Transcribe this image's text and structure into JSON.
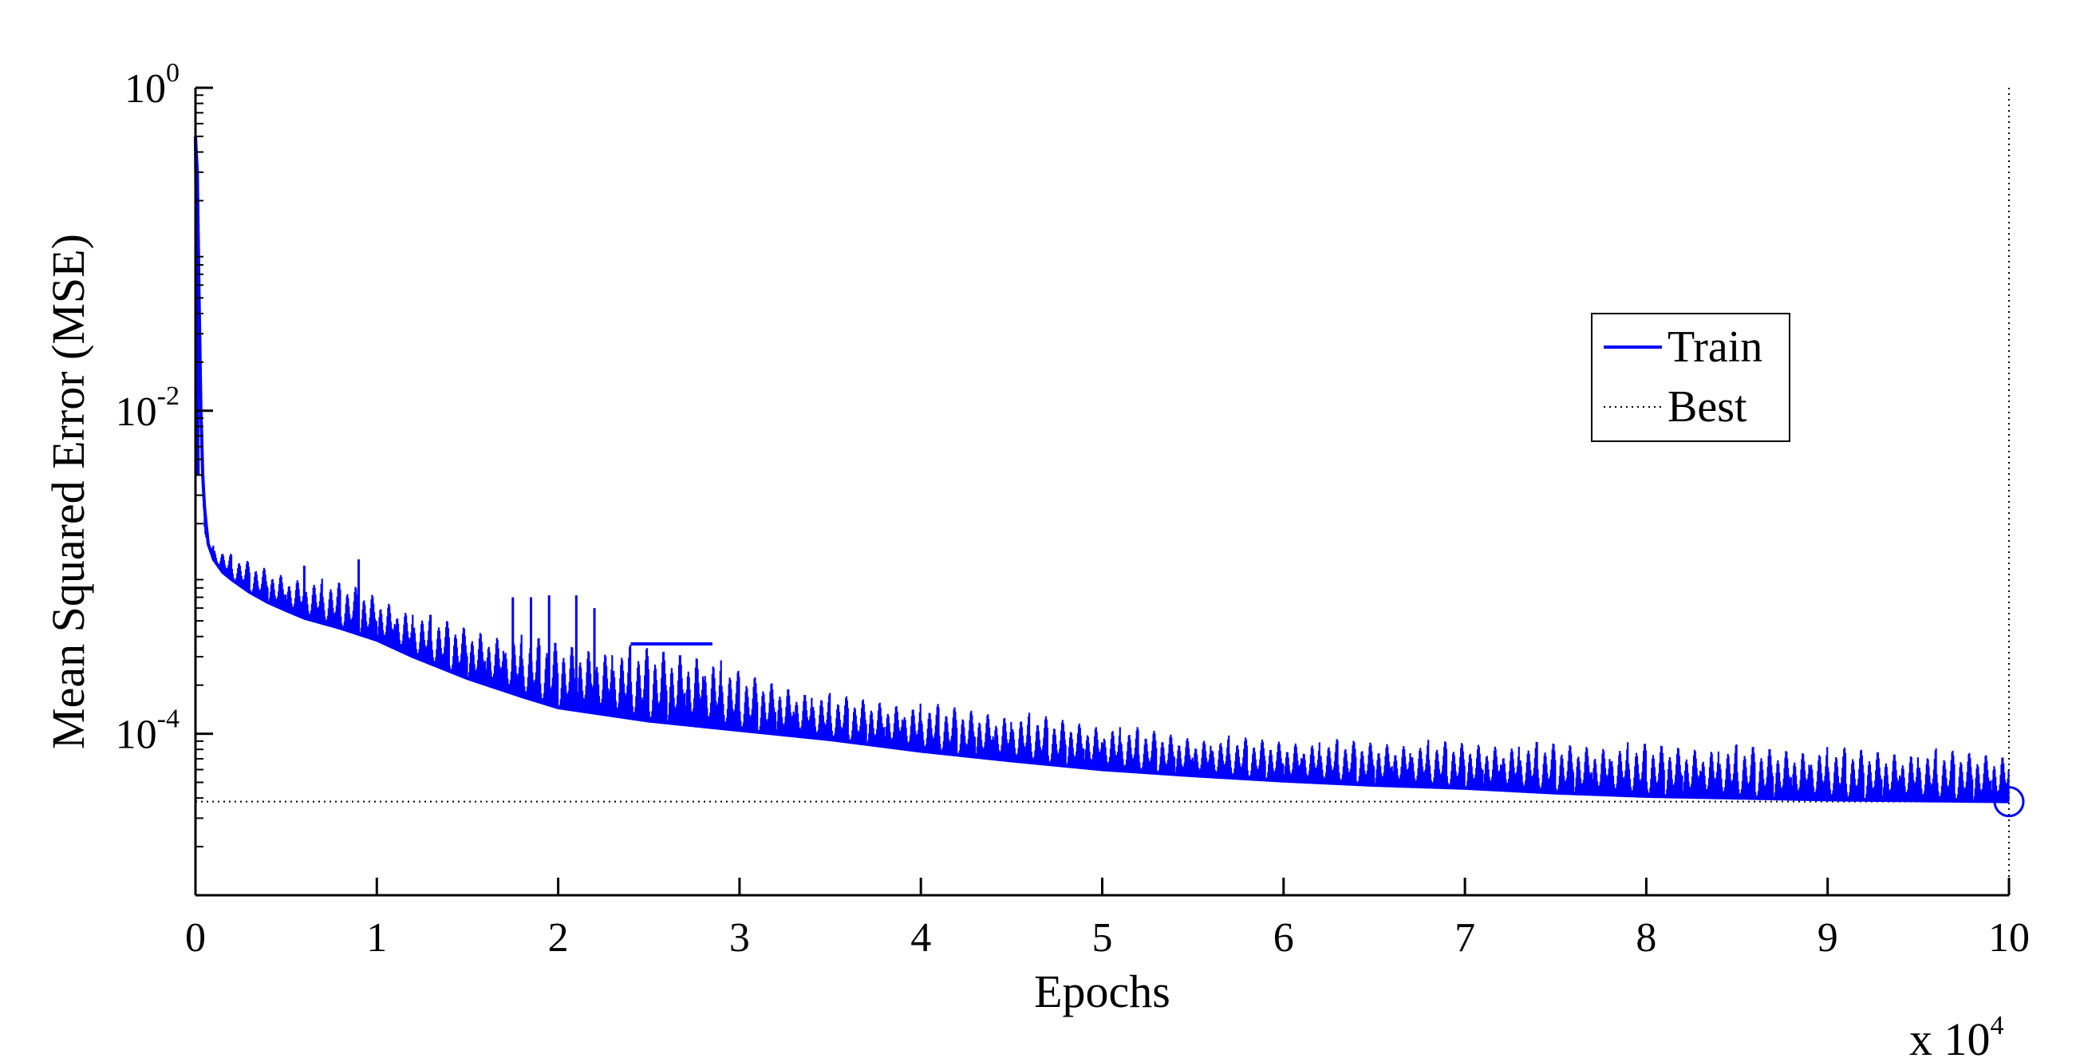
{
  "chart_data": {
    "type": "line",
    "title": "",
    "xlabel": "Epochs",
    "ylabel": "Mean Squared Error  (MSE)",
    "x_multiplier": {
      "base": "x 10",
      "exponent": "4"
    },
    "x_range": [
      0,
      100000
    ],
    "y_scale": "log",
    "y_range": [
      1e-05,
      1
    ],
    "x_ticks": [
      {
        "value": 0,
        "label": "0"
      },
      {
        "value": 10000,
        "label": "1"
      },
      {
        "value": 20000,
        "label": "2"
      },
      {
        "value": 30000,
        "label": "3"
      },
      {
        "value": 40000,
        "label": "4"
      },
      {
        "value": 50000,
        "label": "5"
      },
      {
        "value": 60000,
        "label": "6"
      },
      {
        "value": 70000,
        "label": "7"
      },
      {
        "value": 80000,
        "label": "8"
      },
      {
        "value": 90000,
        "label": "9"
      },
      {
        "value": 100000,
        "label": "10"
      }
    ],
    "y_ticks": [
      {
        "value": 1,
        "base": "10",
        "exponent": "0"
      },
      {
        "value": 0.01,
        "base": "10",
        "exponent": "-2"
      },
      {
        "value": 0.0001,
        "base": "10",
        "exponent": "-4"
      }
    ],
    "grid": false,
    "legend_position": "top-right",
    "series": [
      {
        "name": "Train",
        "color": "#0000ff",
        "line_style": "solid",
        "baseline": [
          [
            0,
            0.5
          ],
          [
            100,
            0.3
          ],
          [
            200,
            0.05
          ],
          [
            300,
            0.01
          ],
          [
            400,
            0.004
          ],
          [
            500,
            0.0025
          ],
          [
            700,
            0.0015
          ],
          [
            1000,
            0.0012
          ],
          [
            1500,
            0.001
          ],
          [
            2000,
            0.0009
          ],
          [
            3000,
            0.00075
          ],
          [
            4000,
            0.00065
          ],
          [
            5000,
            0.00058
          ],
          [
            6000,
            0.00052
          ],
          [
            8000,
            0.00045
          ],
          [
            10000,
            0.00038
          ],
          [
            12000,
            0.0003
          ],
          [
            15000,
            0.00022
          ],
          [
            18000,
            0.00017
          ],
          [
            20000,
            0.000145
          ],
          [
            25000,
            0.00012
          ],
          [
            30000,
            0.000105
          ],
          [
            35000,
            9.2e-05
          ],
          [
            40000,
            7.8e-05
          ],
          [
            45000,
            6.8e-05
          ],
          [
            50000,
            6e-05
          ],
          [
            55000,
            5.5e-05
          ],
          [
            60000,
            5.1e-05
          ],
          [
            65000,
            4.8e-05
          ],
          [
            70000,
            4.6e-05
          ],
          [
            75000,
            4.3e-05
          ],
          [
            80000,
            4.1e-05
          ],
          [
            85000,
            4e-05
          ],
          [
            90000,
            3.9e-05
          ],
          [
            95000,
            3.85e-05
          ],
          [
            100000,
            3.8e-05
          ]
        ],
        "spike_envelope": [
          [
            500,
            0.0016
          ],
          [
            2000,
            0.0013
          ],
          [
            5000,
            0.001
          ],
          [
            9000,
            0.00085
          ],
          [
            12000,
            0.0006
          ],
          [
            15000,
            0.00048
          ],
          [
            18000,
            0.00042
          ],
          [
            22000,
            0.00037
          ],
          [
            28000,
            0.00035
          ],
          [
            30000,
            0.00025
          ],
          [
            32000,
            0.00022
          ],
          [
            35000,
            0.00018
          ],
          [
            40000,
            0.00016
          ],
          [
            45000,
            0.00014
          ],
          [
            50000,
            0.00012
          ],
          [
            55000,
            0.0001
          ],
          [
            60000,
            9.5e-05
          ],
          [
            70000,
            9.2e-05
          ],
          [
            80000,
            9e-05
          ],
          [
            90000,
            8.5e-05
          ],
          [
            100000,
            8e-05
          ]
        ],
        "tall_spikes": [
          [
            6000,
            0.0011
          ],
          [
            9000,
            0.0012
          ],
          [
            17500,
            0.0007
          ],
          [
            18500,
            0.0007
          ],
          [
            19500,
            0.00072
          ],
          [
            21000,
            0.00072
          ],
          [
            22000,
            0.0006
          ]
        ],
        "plateau": {
          "x": [
            24000,
            28500
          ],
          "y": 0.00036
        }
      },
      {
        "name": "Best",
        "color": "#000000",
        "line_style": "dotted",
        "best_epoch": 100000,
        "best_value": 3.8e-05
      }
    ]
  }
}
